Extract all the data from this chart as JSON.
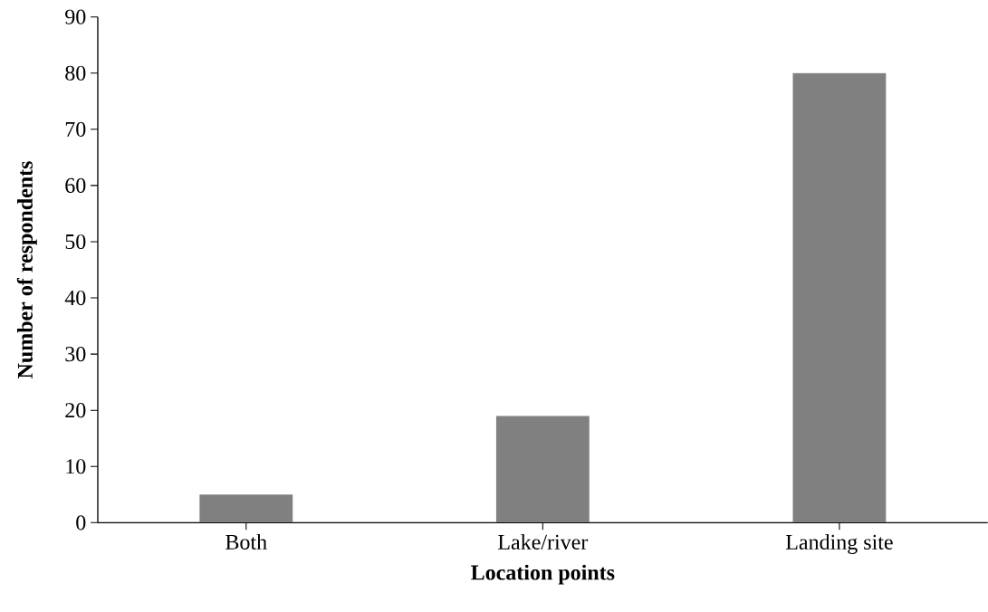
{
  "chart_data": {
    "type": "bar",
    "xlabel": "Location points",
    "ylabel": "Number of respondents",
    "categories": [
      "Both",
      "Lake/river",
      "Landing site"
    ],
    "values": [
      5,
      19,
      80
    ],
    "color": "#808080",
    "ylim": [
      0,
      90
    ],
    "yticks": [
      0,
      10,
      20,
      30,
      40,
      50,
      60,
      70,
      80,
      90
    ],
    "grid": false
  }
}
